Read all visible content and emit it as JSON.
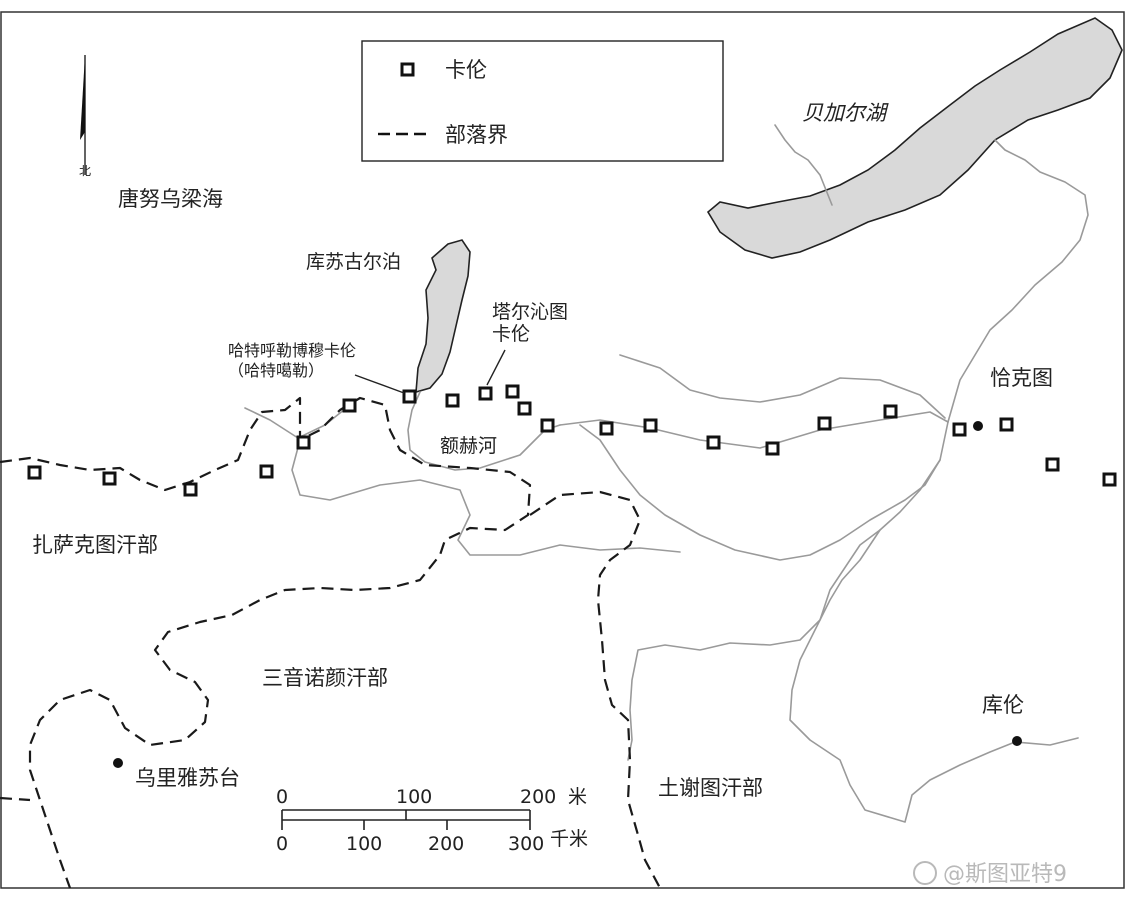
{
  "legend": {
    "items": [
      {
        "symbol": "square",
        "label": "卡伦"
      },
      {
        "symbol": "dash-line",
        "label": "部落界"
      }
    ]
  },
  "north_arrow": {
    "label": "北"
  },
  "labels": {
    "tannu_uriankhai": "唐努乌梁海",
    "baikal": "贝加尔湖",
    "khovsgol": "库苏古尔泊",
    "tarqin_line1": "塔尔沁图",
    "tarqin_line2": "卡伦",
    "hathul_line1": "哈特呼勒博穆卡伦",
    "hathul_line2": "（哈特噶勒）",
    "eg_river": "额赫河",
    "kyakhta": "恰克图",
    "zasagt": "扎萨克图汗部",
    "sain_noyon": "三音诺颜汗部",
    "uliastai": "乌里雅苏台",
    "tushetu": "土谢图汗部",
    "urga": "库伦"
  },
  "scale": {
    "miles_ticks": [
      "0",
      "100",
      "200"
    ],
    "miles_unit": "米",
    "km_ticks": [
      "0",
      "100",
      "200",
      "300"
    ],
    "km_unit": "千米"
  },
  "watermark": "@斯图亚特9",
  "colors": {
    "lake_fill": "#d9d9d9",
    "river": "#9a9a9a",
    "boundary": "#1a1a1a",
    "background": "#ffffff"
  }
}
